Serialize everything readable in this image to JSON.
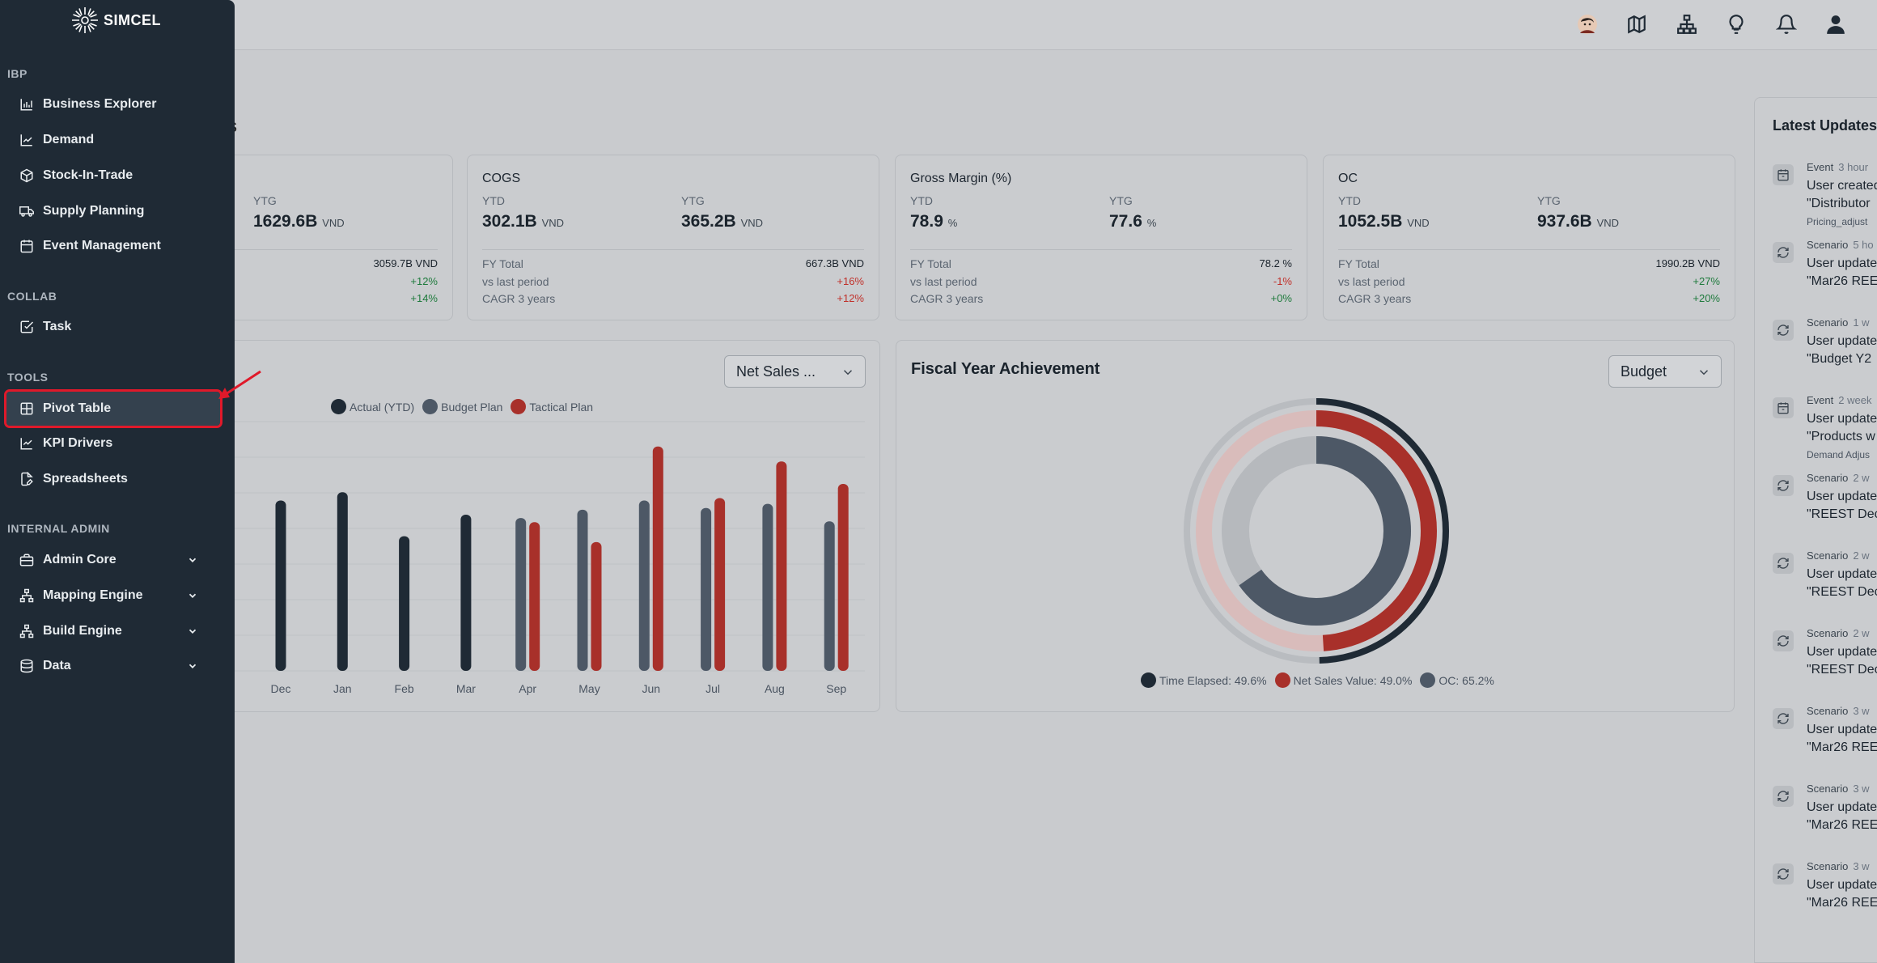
{
  "sidebar": {
    "brand": "SIMCEL",
    "sections": [
      {
        "label": "IBP"
      },
      {
        "label": "COLLAB"
      },
      {
        "label": "TOOLS"
      },
      {
        "label": "INTERNAL ADMIN"
      }
    ],
    "items": [
      {
        "label": "Business Explorer",
        "icon": "bar-chart-icon"
      },
      {
        "label": "Demand",
        "icon": "line-chart-icon"
      },
      {
        "label": "Stock-In-Trade",
        "icon": "box-icon"
      },
      {
        "label": "Supply Planning",
        "icon": "truck-icon"
      },
      {
        "label": "Event Management",
        "icon": "calendar-icon"
      },
      {
        "label": "Task",
        "icon": "check-square-icon"
      },
      {
        "label": "Pivot Table",
        "icon": "grid-icon"
      },
      {
        "label": "KPI Drivers",
        "icon": "trend-icon"
      },
      {
        "label": "Spreadsheets",
        "icon": "file-edit-icon"
      },
      {
        "label": "Admin Core",
        "icon": "briefcase-icon"
      },
      {
        "label": "Mapping Engine",
        "icon": "sitemap-icon"
      },
      {
        "label": "Build Engine",
        "icon": "hierarchy-icon"
      },
      {
        "label": "Data",
        "icon": "database-icon"
      }
    ]
  },
  "page": {
    "title_fragment": "s"
  },
  "kpis": [
    {
      "title": "",
      "ytd_label": "",
      "ytd_value": "",
      "ytd_unit": "",
      "ytg_label": "YTG",
      "ytg_value": "1629.6B",
      "ytg_unit": "VND",
      "fy_label": "",
      "fy_value": "3059.7B VND",
      "vs_label": "",
      "vs_value": "+12%",
      "cagr_label": "",
      "cagr_value": "+14%"
    },
    {
      "title": "COGS",
      "ytd_label": "YTD",
      "ytd_value": "302.1B",
      "ytd_unit": "VND",
      "ytg_label": "YTG",
      "ytg_value": "365.2B",
      "ytg_unit": "VND",
      "fy_label": "FY Total",
      "fy_value": "667.3B VND",
      "vs_label": "vs last period",
      "vs_value": "+16%",
      "cagr_label": "CAGR 3 years",
      "cagr_value": "+12%"
    },
    {
      "title": "Gross Margin (%)",
      "ytd_label": "YTD",
      "ytd_value": "78.9",
      "ytd_unit": "%",
      "ytg_label": "YTG",
      "ytg_value": "77.6",
      "ytg_unit": "%",
      "fy_label": "FY Total",
      "fy_value": "78.2 %",
      "vs_label": "vs last period",
      "vs_value": "-1%",
      "cagr_label": "CAGR 3 years",
      "cagr_value": "+0%"
    },
    {
      "title": "OC",
      "ytd_label": "YTD",
      "ytd_value": "1052.5B",
      "ytd_unit": "VND",
      "ytg_label": "YTG",
      "ytg_value": "937.6B",
      "ytg_unit": "VND",
      "fy_label": "FY Total",
      "fy_value": "1990.2B VND",
      "vs_label": "vs last period",
      "vs_value": "+27%",
      "cagr_label": "CAGR 3 years",
      "cagr_value": "+20%"
    }
  ],
  "bar_chart": {
    "dropdown": "Net Sales ...",
    "legend": [
      "Actual (YTD)",
      "Budget Plan",
      "Tactical Plan"
    ]
  },
  "fy_chart": {
    "title": "Fiscal Year Achievement",
    "dropdown": "Budget",
    "legend": [
      "Time Elapsed: 49.6%",
      "Net Sales Value: 49.0%",
      "OC: 65.2%"
    ]
  },
  "updates": {
    "title": "Latest Updates",
    "items": [
      {
        "type": "Event",
        "time": "3 hour",
        "l1": "User created",
        "l2": "\"Distributor",
        "tag": "Pricing_adjust",
        "icon": "calendar-icon"
      },
      {
        "type": "Scenario",
        "time": "5 ho",
        "l1": "User update",
        "l2": "\"Mar26 REE",
        "tag": "",
        "icon": "refresh-icon"
      },
      {
        "type": "Scenario",
        "time": "1 w",
        "l1": "User update",
        "l2": "\"Budget Y2",
        "tag": "",
        "icon": "refresh-icon"
      },
      {
        "type": "Event",
        "time": "2 week",
        "l1": "User update",
        "l2": "\"Products w",
        "tag": "Demand Adjus",
        "icon": "calendar-icon"
      },
      {
        "type": "Scenario",
        "time": "2 w",
        "l1": "User update",
        "l2": "\"REEST Dec",
        "tag": "",
        "icon": "refresh-icon"
      },
      {
        "type": "Scenario",
        "time": "2 w",
        "l1": "User update",
        "l2": "\"REEST Dec",
        "tag": "",
        "icon": "refresh-icon"
      },
      {
        "type": "Scenario",
        "time": "2 w",
        "l1": "User update",
        "l2": "\"REEST Dec",
        "tag": "",
        "icon": "refresh-icon"
      },
      {
        "type": "Scenario",
        "time": "3 w",
        "l1": "User update",
        "l2": "\"Mar26 REE",
        "tag": "",
        "icon": "refresh-icon"
      },
      {
        "type": "Scenario",
        "time": "3 w",
        "l1": "User update",
        "l2": "\"Mar26 REE",
        "tag": "",
        "icon": "refresh-icon"
      },
      {
        "type": "Scenario",
        "time": "3 w",
        "l1": "User update",
        "l2": "\"Mar26 REE",
        "tag": "",
        "icon": "refresh-icon"
      }
    ]
  },
  "topbar": {
    "icons": [
      "avatar-photo-icon",
      "map-icon",
      "org-chart-icon",
      "lightbulb-icon",
      "bell-icon",
      "user-icon"
    ]
  },
  "colors": {
    "actual": "#1f2a35",
    "budget": "#4d5866",
    "tactical": "#a8302a",
    "highlight": "#e0192a"
  },
  "chart_data": [
    {
      "type": "bar",
      "categories": [
        "Dec",
        "Jan",
        "Feb",
        "Mar",
        "Apr",
        "May",
        "Jun",
        "Jul",
        "Aug",
        "Sep"
      ],
      "series": [
        {
          "name": "Actual (YTD)",
          "values": [
            205,
            215,
            162,
            188,
            null,
            null,
            null,
            null,
            null,
            null
          ]
        },
        {
          "name": "Budget Plan",
          "values": [
            null,
            null,
            null,
            null,
            184,
            194,
            205,
            196,
            201,
            180
          ]
        },
        {
          "name": "Tactical Plan",
          "values": [
            null,
            null,
            null,
            null,
            179,
            155,
            270,
            208,
            252,
            225
          ]
        }
      ],
      "ylim": [
        0,
        300
      ],
      "grid": true,
      "legend": "top"
    },
    {
      "type": "pie",
      "title": "Fiscal Year Achievement",
      "series": [
        {
          "name": "Time Elapsed",
          "value": 49.6
        },
        {
          "name": "Net Sales Value",
          "value": 49.0
        },
        {
          "name": "OC",
          "value": 65.2
        }
      ],
      "legend": "bottom"
    }
  ]
}
